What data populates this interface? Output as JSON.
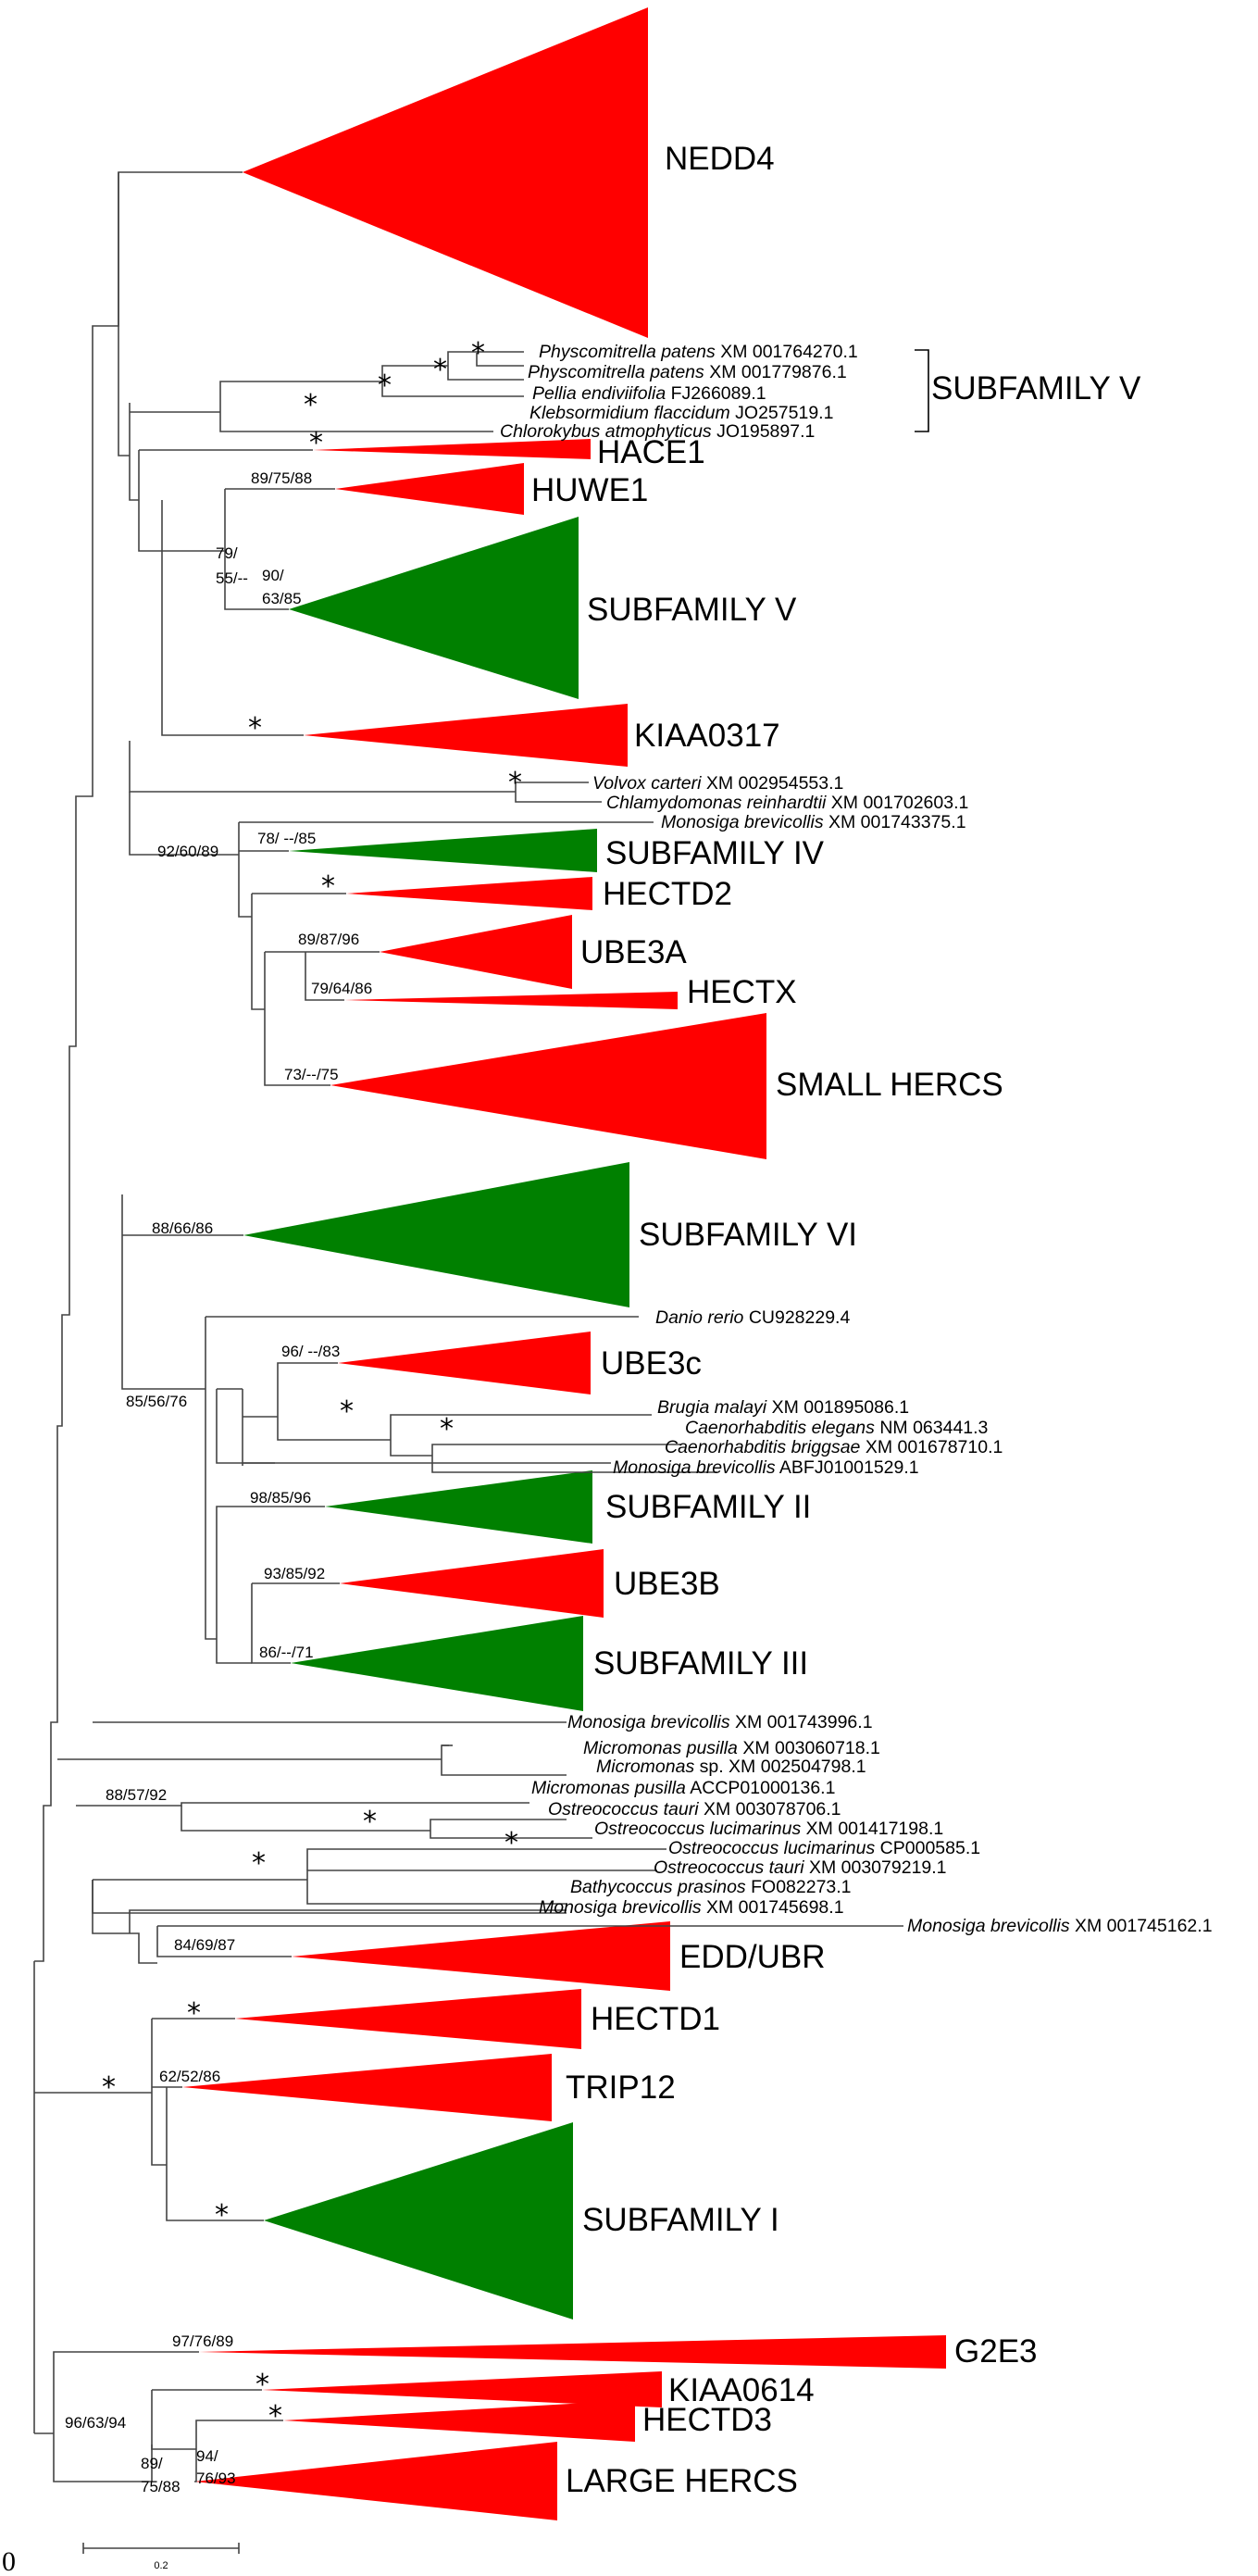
{
  "colors": {
    "hect_clade": "#ff0000",
    "plant_subfamily": "#008000",
    "branch": "#444444"
  },
  "clades": [
    {
      "key": "nedd4",
      "label": "NEDD4",
      "color": "red"
    },
    {
      "key": "hace1",
      "label": "HACE1",
      "color": "red"
    },
    {
      "key": "huwe1",
      "label": "HUWE1",
      "color": "red"
    },
    {
      "key": "subV_green",
      "label": "SUBFAMILY V",
      "color": "green"
    },
    {
      "key": "kiaa0317",
      "label": "KIAA0317",
      "color": "red"
    },
    {
      "key": "subIV",
      "label": "SUBFAMILY IV",
      "color": "green"
    },
    {
      "key": "hectd2",
      "label": "HECTD2",
      "color": "red"
    },
    {
      "key": "ube3a",
      "label": "UBE3A",
      "color": "red"
    },
    {
      "key": "hectx",
      "label": "HECTX",
      "color": "red"
    },
    {
      "key": "small_hercs",
      "label": "SMALL HERCS",
      "color": "red"
    },
    {
      "key": "subVI",
      "label": "SUBFAMILY VI",
      "color": "green"
    },
    {
      "key": "ube3c",
      "label": "UBE3c",
      "color": "red"
    },
    {
      "key": "subII",
      "label": "SUBFAMILY II",
      "color": "green"
    },
    {
      "key": "ube3b",
      "label": "UBE3B",
      "color": "red"
    },
    {
      "key": "subIII",
      "label": "SUBFAMILY III",
      "color": "green"
    },
    {
      "key": "edd_ubr",
      "label": "EDD/UBR",
      "color": "red"
    },
    {
      "key": "hectd1",
      "label": "HECTD1",
      "color": "red"
    },
    {
      "key": "trip12",
      "label": "TRIP12",
      "color": "red"
    },
    {
      "key": "subI",
      "label": "SUBFAMILY I",
      "color": "green"
    },
    {
      "key": "g2e3",
      "label": "G2E3",
      "color": "red"
    },
    {
      "key": "kiaa0614",
      "label": "KIAA0614",
      "color": "red"
    },
    {
      "key": "hectd3",
      "label": "HECTD3",
      "color": "red"
    },
    {
      "key": "large_hercs",
      "label": "LARGE HERCS",
      "color": "red"
    }
  ],
  "bracket_label": "SUBFAMILY V",
  "taxa": [
    {
      "key": "pp1",
      "species": "Physcomitrella patens",
      "acc": "XM 001764270.1"
    },
    {
      "key": "pp2",
      "species": "Physcomitrella patens",
      "acc": "XM 001779876.1"
    },
    {
      "key": "pe",
      "species": "Pellia endiviifolia",
      "acc": "FJ266089.1"
    },
    {
      "key": "kf",
      "species": "Klebsormidium flaccidum",
      "acc": "JO257519.1"
    },
    {
      "key": "ca",
      "species": "Chlorokybus atmophyticus",
      "acc": "JO195897.1"
    },
    {
      "key": "vc",
      "species": "Volvox carteri",
      "acc": "XM 002954553.1"
    },
    {
      "key": "cr",
      "species": "Chlamydomonas reinhardtii",
      "acc": "XM 001702603.1"
    },
    {
      "key": "mb1",
      "species": "Monosiga brevicollis",
      "acc": "XM 001743375.1"
    },
    {
      "key": "dr",
      "species": "Danio rerio",
      "acc": "CU928229.4"
    },
    {
      "key": "bm",
      "species": "Brugia malayi",
      "acc": "XM 001895086.1"
    },
    {
      "key": "ce",
      "species": "Caenorhabditis elegans",
      "acc": "NM 063441.3"
    },
    {
      "key": "cb",
      "species": "Caenorhabditis briggsae",
      "acc": "XM 001678710.1"
    },
    {
      "key": "mb2",
      "species": "Monosiga brevicollis",
      "acc": "ABFJ01001529.1"
    },
    {
      "key": "mb3",
      "species": "Monosiga brevicollis",
      "acc": "XM 001743996.1"
    },
    {
      "key": "mp1",
      "species": "Micromonas pusilla",
      "acc": "XM 003060718.1"
    },
    {
      "key": "msp",
      "species": "Micromonas",
      "acc": "sp. XM 002504798.1"
    },
    {
      "key": "mp2",
      "species": "Micromonas pusilla",
      "acc": "ACCP01000136.1"
    },
    {
      "key": "ot1",
      "species": "Ostreococcus tauri",
      "acc": "XM 003078706.1"
    },
    {
      "key": "ol1",
      "species": "Ostreococcus lucimarinus",
      "acc": "XM 001417198.1"
    },
    {
      "key": "ol2",
      "species": "Ostreococcus lucimarinus",
      "acc": "CP000585.1"
    },
    {
      "key": "ot2",
      "species": "Ostreococcus tauri",
      "acc": "XM 003079219.1"
    },
    {
      "key": "bp",
      "species": "Bathycoccus prasinos",
      "acc": "FO082273.1"
    },
    {
      "key": "mb4",
      "species": "Monosiga brevicollis",
      "acc": "XM 001745698.1"
    },
    {
      "key": "mb5",
      "species": "Monosiga brevicollis",
      "acc": "XM 001745162.1"
    }
  ],
  "support": {
    "huwe1": "89/75/88",
    "n79": "79/",
    "n55": "55/--",
    "n90": "90/",
    "n63": "63/85",
    "n9260": "92/60/89",
    "subIV": "78/ --/85",
    "ube3a": "89/87/96",
    "hectx": "79/64/86",
    "small_hercs": "73/--/75",
    "subVI": "88/66/86",
    "ube3c": "96/ --/83",
    "n8556": "85/56/76",
    "subII": "98/85/96",
    "ube3b": "93/85/92",
    "subIII": "86/--/71",
    "n8857": "88/57/92",
    "edd_ubr": "84/69/87",
    "trip12": "62/52/86",
    "g2e3": "97/76/89",
    "n9663": "96/63/94",
    "n89": "89/",
    "n7588": "75/88",
    "n94": "94/",
    "n7693": "76/93"
  },
  "star": "*",
  "scale_bar_label": "0.2",
  "corner_mark": "0"
}
